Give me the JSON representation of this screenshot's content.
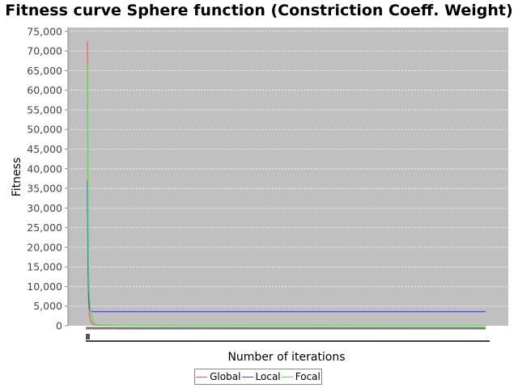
{
  "chart_data": {
    "type": "line",
    "title": "Fitness curve Sphere function (Constriction Coeff. Weight)",
    "xlabel": "Number of iterations",
    "ylabel": "Fitness",
    "ylim": [
      0,
      76000
    ],
    "yticks": [
      "0",
      "5,000",
      "10,000",
      "15,000",
      "20,000",
      "25,000",
      "30,000",
      "35,000",
      "40,000",
      "45,000",
      "50,000",
      "55,000",
      "60,000",
      "65,000",
      "70,000",
      "75,000"
    ],
    "xlim": [
      0,
      1000
    ],
    "grid": true,
    "legend_position": "bottom",
    "background": "#c0c0c0",
    "series": [
      {
        "name": "Global",
        "color": "#ff5555",
        "points": [
          [
            0,
            72500
          ],
          [
            1,
            65000
          ],
          [
            2,
            22000
          ],
          [
            3,
            14000
          ],
          [
            4,
            9000
          ],
          [
            5,
            6500
          ],
          [
            6,
            4800
          ],
          [
            8,
            3200
          ],
          [
            10,
            2100
          ],
          [
            13,
            1400
          ],
          [
            17,
            900
          ],
          [
            22,
            600
          ],
          [
            30,
            380
          ],
          [
            45,
            230
          ],
          [
            70,
            140
          ],
          [
            110,
            90
          ],
          [
            180,
            60
          ],
          [
            300,
            40
          ],
          [
            500,
            25
          ],
          [
            1000,
            15
          ]
        ]
      },
      {
        "name": "Local",
        "color": "#4444ff",
        "points": [
          [
            0,
            37000
          ],
          [
            1,
            27000
          ],
          [
            2,
            19500
          ],
          [
            3,
            13500
          ],
          [
            4,
            11000
          ],
          [
            5,
            8000
          ],
          [
            6,
            6500
          ],
          [
            8,
            5000
          ],
          [
            10,
            4300
          ],
          [
            12,
            3900
          ],
          [
            15,
            3700
          ],
          [
            20,
            3600
          ],
          [
            1000,
            3600
          ]
        ]
      },
      {
        "name": "Focal",
        "color": "#44ee44",
        "points": [
          [
            0,
            67000
          ],
          [
            1,
            58000
          ],
          [
            2,
            40000
          ],
          [
            3,
            28000
          ],
          [
            4,
            20000
          ],
          [
            5,
            15000
          ],
          [
            7,
            9000
          ],
          [
            10,
            6000
          ],
          [
            14,
            3500
          ],
          [
            20,
            2000
          ],
          [
            30,
            1000
          ],
          [
            50,
            500
          ],
          [
            80,
            250
          ],
          [
            150,
            120
          ],
          [
            300,
            60
          ],
          [
            1000,
            30
          ]
        ]
      }
    ]
  }
}
